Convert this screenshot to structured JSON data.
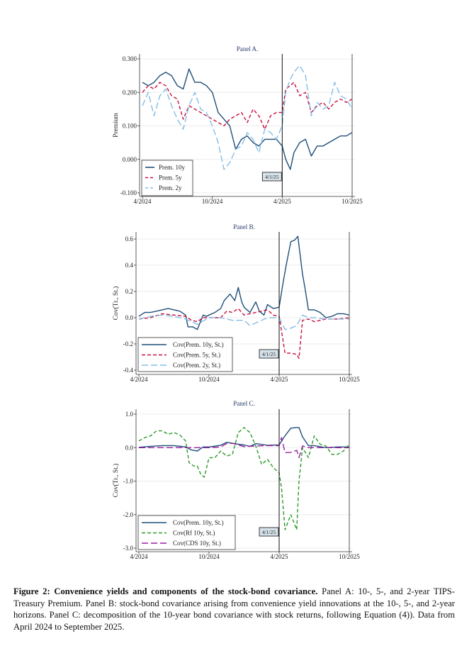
{
  "chart_data": [
    {
      "type": "line",
      "title": "Panel A.",
      "ylabel": "Premium",
      "xlabel": "",
      "x_ticks": [
        "4/2024",
        "10/2024",
        "4/2025",
        "10/2025"
      ],
      "y_ticks": [
        "0.300",
        "0.200",
        "0.100",
        "0.000",
        "-0.100"
      ],
      "y_tick_values": [
        0.3,
        0.2,
        0.1,
        0.0,
        -0.1
      ],
      "ylim": [
        -0.105,
        0.31
      ],
      "xlim_months": [
        0,
        18
      ],
      "vline_month": 12,
      "vline_label": "4/1/25",
      "legend_position": "bottom-left",
      "grid": true,
      "series": [
        {
          "name": "Prem. 10y",
          "color": "#1f4e79",
          "dash": "solid",
          "x": [
            0,
            0.5,
            1,
            1.5,
            2,
            2.5,
            3,
            3.5,
            4,
            4.5,
            5,
            5.5,
            6,
            6.5,
            7,
            7.5,
            8,
            8.5,
            9,
            9.5,
            10,
            10.5,
            11,
            11.5,
            12,
            12.3,
            12.7,
            13,
            13.5,
            14,
            14.5,
            15,
            15.5,
            16,
            16.5,
            17,
            17.5,
            18
          ],
          "values": [
            0.23,
            0.22,
            0.23,
            0.25,
            0.26,
            0.25,
            0.22,
            0.21,
            0.27,
            0.23,
            0.23,
            0.22,
            0.2,
            0.14,
            0.12,
            0.1,
            0.03,
            0.06,
            0.07,
            0.05,
            0.04,
            0.06,
            0.06,
            0.06,
            0.04,
            0.0,
            -0.03,
            0.02,
            0.05,
            0.06,
            0.01,
            0.04,
            0.04,
            0.05,
            0.06,
            0.07,
            0.07,
            0.08
          ]
        },
        {
          "name": "Prem. 5y",
          "color": "#c8103e",
          "dash": "dashed",
          "x": [
            0,
            0.5,
            1,
            1.5,
            2,
            2.5,
            3,
            3.5,
            4,
            4.5,
            5,
            5.5,
            6,
            6.5,
            7,
            7.5,
            8,
            8.5,
            9,
            9.5,
            10,
            10.5,
            11,
            11.5,
            12,
            12.3,
            12.7,
            13,
            13.5,
            14,
            14.5,
            15,
            15.5,
            16,
            16.5,
            17,
            17.5,
            18
          ],
          "values": [
            0.2,
            0.22,
            0.21,
            0.23,
            0.22,
            0.19,
            0.18,
            0.12,
            0.16,
            0.15,
            0.14,
            0.13,
            0.12,
            0.11,
            0.1,
            0.12,
            0.13,
            0.14,
            0.11,
            0.15,
            0.13,
            0.09,
            0.13,
            0.14,
            0.14,
            0.21,
            0.22,
            0.23,
            0.19,
            0.2,
            0.14,
            0.16,
            0.17,
            0.15,
            0.17,
            0.18,
            0.17,
            0.18
          ]
        },
        {
          "name": "Prem. 2y",
          "color": "#85bde6",
          "dash": "longdash",
          "x": [
            0,
            0.5,
            1,
            1.5,
            2,
            2.5,
            3,
            3.5,
            4,
            4.5,
            5,
            5.5,
            6,
            6.5,
            7,
            7.5,
            8,
            8.5,
            9,
            9.5,
            10,
            10.5,
            11,
            11.5,
            12,
            12.3,
            12.7,
            13,
            13.5,
            14,
            14.5,
            15,
            15.5,
            16,
            16.5,
            17,
            17.5,
            18
          ],
          "values": [
            0.16,
            0.2,
            0.13,
            0.19,
            0.21,
            0.16,
            0.12,
            0.09,
            0.16,
            0.2,
            0.15,
            0.14,
            0.1,
            0.05,
            -0.03,
            -0.01,
            0.03,
            0.04,
            0.08,
            0.06,
            0.02,
            0.09,
            0.08,
            0.06,
            0.1,
            0.2,
            0.24,
            0.26,
            0.28,
            0.25,
            0.13,
            0.17,
            0.15,
            0.16,
            0.23,
            0.19,
            0.18,
            0.15
          ]
        }
      ]
    },
    {
      "type": "line",
      "title": "Panel B.",
      "ylabel": "Cov(Tr., St.)",
      "xlabel": "",
      "x_ticks": [
        "4/2024",
        "10/2024",
        "4/2025",
        "10/2025"
      ],
      "y_ticks": [
        "0.6",
        "0.4",
        "0.2",
        "0.0",
        "-0.2",
        "-0.4"
      ],
      "y_tick_values": [
        0.6,
        0.4,
        0.2,
        0.0,
        -0.2,
        -0.4
      ],
      "ylim": [
        -0.43,
        0.66
      ],
      "xlim_months": [
        0,
        18
      ],
      "vline_month": 12,
      "vline_label": "4/1/25",
      "legend_position": "bottom-left",
      "grid": true,
      "series": [
        {
          "name": "Cov(Prem. 10y, St.)",
          "color": "#1f4e79",
          "dash": "solid",
          "x": [
            0,
            0.5,
            1,
            1.5,
            2,
            2.5,
            3,
            3.5,
            4,
            4.2,
            4.6,
            5,
            5.5,
            5.8,
            6,
            6.5,
            7,
            7.3,
            7.8,
            8.2,
            8.5,
            8.8,
            9,
            9.5,
            10,
            10.3,
            10.7,
            11,
            11.5,
            12,
            12.3,
            12.6,
            13,
            13.3,
            13.6,
            14,
            14.2,
            14.5,
            15,
            15.5,
            16,
            16.5,
            17,
            17.5,
            18
          ],
          "values": [
            0.01,
            0.04,
            0.04,
            0.05,
            0.06,
            0.07,
            0.06,
            0.05,
            0.02,
            -0.07,
            -0.07,
            -0.09,
            0.02,
            0.01,
            0.02,
            0.04,
            0.07,
            0.13,
            0.18,
            0.13,
            0.23,
            0.12,
            0.08,
            0.04,
            0.12,
            0.05,
            0.02,
            0.1,
            0.07,
            0.08,
            0.25,
            0.4,
            0.58,
            0.59,
            0.62,
            0.33,
            0.23,
            0.06,
            0.06,
            0.04,
            0.0,
            0.01,
            0.03,
            0.03,
            0.02
          ]
        },
        {
          "name": "Cov(Prem. 5y, St.)",
          "color": "#c8103e",
          "dash": "dashed",
          "x": [
            0,
            1,
            2,
            3,
            4,
            4.5,
            5,
            5.5,
            6,
            7,
            7.5,
            8,
            8.5,
            9,
            10,
            11,
            11.5,
            12,
            12.2,
            12.5,
            13,
            13.5,
            13.7,
            14,
            14.5,
            15,
            16,
            17,
            18
          ],
          "values": [
            -0.01,
            0.0,
            0.03,
            0.02,
            0.01,
            -0.02,
            -0.03,
            0.0,
            0.0,
            0.0,
            0.05,
            0.04,
            0.07,
            0.02,
            0.04,
            0.06,
            0.02,
            0.01,
            -0.1,
            -0.27,
            -0.27,
            -0.28,
            -0.31,
            -0.02,
            -0.01,
            -0.03,
            -0.01,
            -0.01,
            0.0
          ]
        },
        {
          "name": "Cov(Prem. 2y, St.)",
          "color": "#85bde6",
          "dash": "longdash",
          "x": [
            0,
            1,
            2,
            3,
            4,
            5,
            6,
            7,
            8,
            9,
            9.5,
            10,
            11,
            12,
            12.5,
            13,
            13.5,
            14,
            14.5,
            15,
            16,
            17,
            18
          ],
          "values": [
            -0.01,
            0.01,
            0.02,
            0.01,
            -0.01,
            -0.05,
            0.0,
            0.0,
            -0.02,
            -0.02,
            -0.06,
            -0.04,
            0.0,
            0.0,
            -0.09,
            -0.08,
            -0.06,
            0.02,
            0.0,
            0.0,
            -0.01,
            -0.01,
            -0.01
          ]
        }
      ]
    },
    {
      "type": "line",
      "title": "Panel C.",
      "ylabel": "Cov(Tr., St.)",
      "xlabel": "",
      "x_ticks": [
        "4/2024",
        "10/2024",
        "4/2025",
        "10/2025"
      ],
      "y_ticks": [
        "1.0",
        "0.0",
        "-1.0",
        "-2.0",
        "-3.0"
      ],
      "y_tick_values": [
        1.0,
        0.0,
        -1.0,
        -2.0,
        -3.0
      ],
      "ylim": [
        -3.1,
        1.1
      ],
      "xlim_months": [
        0,
        18
      ],
      "vline_month": 12,
      "vline_label": "4/1/25",
      "legend_position": "bottom-left",
      "grid": true,
      "series": [
        {
          "name": "Cov(Prem. 10y, St.)",
          "color": "#1f4e79",
          "dash": "solid",
          "x": [
            0,
            1,
            2,
            3,
            4,
            4.5,
            5,
            5.5,
            6,
            7,
            7.5,
            8,
            8.5,
            9,
            9.5,
            10,
            11,
            12,
            12.3,
            12.6,
            13,
            13.5,
            13.7,
            14,
            14.5,
            15,
            16,
            17,
            18
          ],
          "values": [
            0.01,
            0.04,
            0.06,
            0.06,
            0.02,
            -0.07,
            -0.1,
            0.02,
            0.02,
            0.07,
            0.16,
            0.13,
            0.1,
            0.08,
            0.04,
            0.12,
            0.07,
            0.08,
            0.25,
            0.4,
            0.58,
            0.6,
            0.6,
            0.32,
            0.06,
            0.06,
            0.0,
            0.02,
            0.02
          ]
        },
        {
          "name": "Cov(Rf 10y, St.)",
          "color": "#2a9a2a",
          "dash": "dashed",
          "x": [
            0,
            0.5,
            1,
            1.5,
            2,
            2.5,
            3,
            3.5,
            4,
            4.3,
            4.7,
            5,
            5.3,
            5.6,
            6,
            6.5,
            7,
            7.5,
            8,
            8.5,
            9,
            9.5,
            10,
            10.5,
            11,
            11.5,
            12,
            12.2,
            12.5,
            13,
            13.5,
            13.7,
            14,
            14.5,
            15,
            15.5,
            16,
            16.5,
            17,
            17.5,
            18
          ],
          "values": [
            0.2,
            0.3,
            0.35,
            0.5,
            0.5,
            0.4,
            0.45,
            0.38,
            0.2,
            -0.45,
            -0.55,
            -0.55,
            -0.8,
            -0.88,
            -0.3,
            -0.3,
            -0.1,
            -0.25,
            -0.2,
            0.45,
            0.6,
            0.45,
            0.05,
            -0.5,
            -0.35,
            -0.6,
            -0.75,
            -1.2,
            -2.45,
            -2.0,
            -2.45,
            -1.0,
            0.0,
            -0.3,
            0.35,
            0.1,
            0.05,
            -0.2,
            -0.2,
            -0.1,
            0.1
          ]
        },
        {
          "name": "Cov(CDS 10y, St.)",
          "color": "#9b1fa0",
          "dash": "longdash",
          "x": [
            0,
            2,
            4,
            5,
            6,
            7,
            7.5,
            8,
            8.5,
            9,
            10,
            11,
            12,
            12.2,
            12.5,
            13,
            13.5,
            13.7,
            14,
            14.5,
            15,
            16,
            17,
            18
          ],
          "values": [
            0.0,
            0.0,
            0.0,
            0.0,
            0.0,
            0.02,
            0.12,
            0.13,
            0.08,
            0.03,
            0.05,
            0.06,
            0.06,
            0.3,
            -0.15,
            -0.14,
            -0.08,
            -0.3,
            0.05,
            0.0,
            0.0,
            0.0,
            0.0,
            0.0
          ]
        }
      ]
    }
  ],
  "caption": {
    "label": "Figure 2:",
    "title": "Convenience yields and components of the stock-bond covariance.",
    "text": "Panel A: 10-, 5-, and 2-year TIPS-Treasury Premium. Panel B: stock-bond covariance arising from convenience yield innovations at the 10-, 5-, and 2-year horizons. Panel C: decomposition of the 10-year bond covariance with stock returns, following Equation (4)). Data from April 2024 to September 2025."
  }
}
